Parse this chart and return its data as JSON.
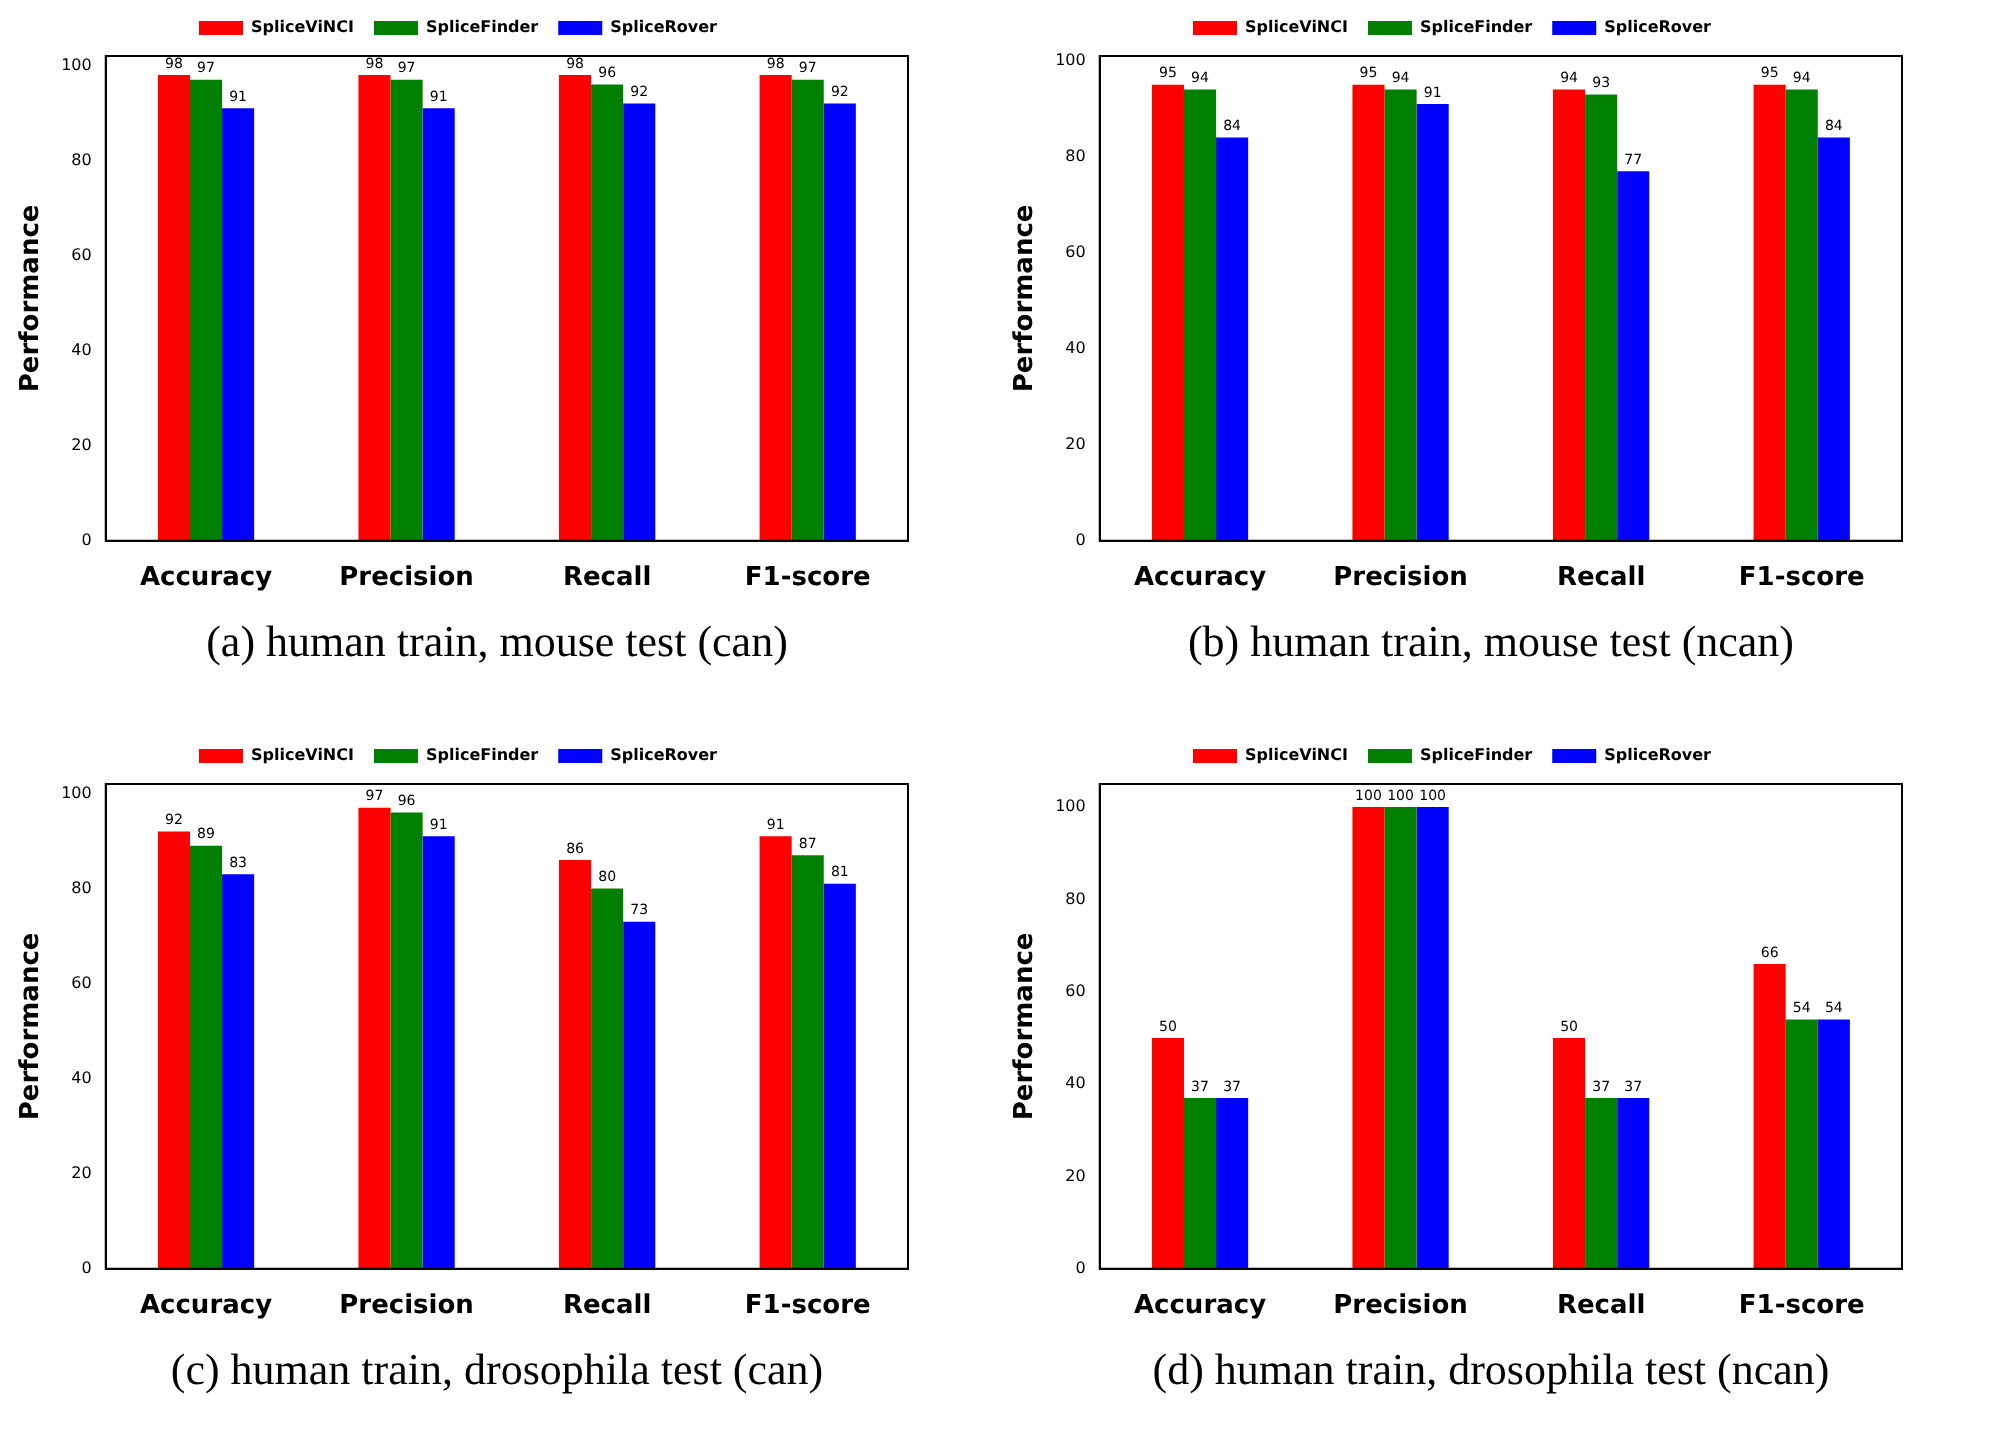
{
  "chart_data": [
    {
      "type": "bar",
      "categories": [
        "Accuracy",
        "Precision",
        "Recall",
        "F1-score"
      ],
      "ylabel": "Performance",
      "ylim": [
        0,
        102
      ],
      "yticks": [
        0,
        20,
        40,
        60,
        80,
        100
      ],
      "legend": "top",
      "grid": false,
      "data_labels": true,
      "annotations": [
        "(a) human train, mouse test (can)"
      ],
      "series": [
        {
          "name": "SpliceViNCI",
          "color": "#ff0000",
          "values": [
            98,
            98,
            98,
            98
          ]
        },
        {
          "name": "SpliceFinder",
          "color": "#008000",
          "values": [
            97,
            97,
            96,
            97
          ]
        },
        {
          "name": "SpliceRover",
          "color": "#0000ff",
          "values": [
            91,
            91,
            92,
            92
          ]
        }
      ]
    },
    {
      "type": "bar",
      "categories": [
        "Accuracy",
        "Precision",
        "Recall",
        "F1-score"
      ],
      "ylabel": "Performance",
      "ylim": [
        0,
        101
      ],
      "yticks": [
        0,
        20,
        40,
        60,
        80,
        100
      ],
      "legend": "top",
      "grid": false,
      "data_labels": true,
      "annotations": [
        "(b) human train, mouse test (ncan)"
      ],
      "series": [
        {
          "name": "SpliceViNCI",
          "color": "#ff0000",
          "values": [
            95,
            95,
            94,
            95
          ]
        },
        {
          "name": "SpliceFinder",
          "color": "#008000",
          "values": [
            94,
            94,
            93,
            94
          ]
        },
        {
          "name": "SpliceRover",
          "color": "#0000ff",
          "values": [
            84,
            91,
            77,
            84
          ]
        }
      ]
    },
    {
      "type": "bar",
      "categories": [
        "Accuracy",
        "Precision",
        "Recall",
        "F1-score"
      ],
      "ylabel": "Performance",
      "ylim": [
        0,
        102
      ],
      "yticks": [
        0,
        20,
        40,
        60,
        80,
        100
      ],
      "legend": "top",
      "grid": false,
      "data_labels": true,
      "annotations": [
        "(c) human train, drosophila test (can)"
      ],
      "series": [
        {
          "name": "SpliceViNCI",
          "color": "#ff0000",
          "values": [
            92,
            97,
            86,
            91
          ]
        },
        {
          "name": "SpliceFinder",
          "color": "#008000",
          "values": [
            89,
            96,
            80,
            87
          ]
        },
        {
          "name": "SpliceRover",
          "color": "#0000ff",
          "values": [
            83,
            91,
            73,
            81
          ]
        }
      ]
    },
    {
      "type": "bar",
      "categories": [
        "Accuracy",
        "Precision",
        "Recall",
        "F1-score"
      ],
      "ylabel": "Performance",
      "ylim": [
        0,
        105
      ],
      "yticks": [
        0,
        20,
        40,
        60,
        80,
        100
      ],
      "legend": "top",
      "grid": false,
      "data_labels": true,
      "annotations": [
        "(d) human train, drosophila test (ncan)"
      ],
      "series": [
        {
          "name": "SpliceViNCI",
          "color": "#ff0000",
          "values": [
            50,
            100,
            50,
            66
          ]
        },
        {
          "name": "SpliceFinder",
          "color": "#008000",
          "values": [
            37,
            100,
            37,
            54
          ]
        },
        {
          "name": "SpliceRover",
          "color": "#0000ff",
          "values": [
            37,
            100,
            37,
            54
          ]
        }
      ]
    }
  ]
}
